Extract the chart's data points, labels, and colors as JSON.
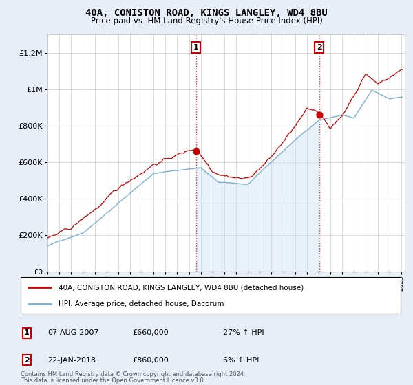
{
  "title": "40A, CONISTON ROAD, KINGS LANGLEY, WD4 8BU",
  "subtitle": "Price paid vs. HM Land Registry's House Price Index (HPI)",
  "legend_label_red": "40A, CONISTON ROAD, KINGS LANGLEY, WD4 8BU (detached house)",
  "legend_label_blue": "HPI: Average price, detached house, Dacorum",
  "ann1_label": "1",
  "ann1_date": "07-AUG-2007",
  "ann1_price": "£660,000",
  "ann1_change": "27% ↑ HPI",
  "ann1_x": 2007.6,
  "ann1_y": 660000,
  "ann2_label": "2",
  "ann2_date": "22-JAN-2018",
  "ann2_price": "£860,000",
  "ann2_change": "6% ↑ HPI",
  "ann2_x": 2018.05,
  "ann2_y": 860000,
  "footer1": "Contains HM Land Registry data © Crown copyright and database right 2024.",
  "footer2": "This data is licensed under the Open Government Licence v3.0.",
  "ylim_max": 1300000,
  "yticks": [
    0,
    200000,
    400000,
    600000,
    800000,
    1000000,
    1200000
  ],
  "ytick_labels": [
    "£0",
    "£200K",
    "£400K",
    "£600K",
    "£800K",
    "£1M",
    "£1.2M"
  ],
  "xmin": 1995,
  "xmax": 2025.3,
  "bg_color": "#e8eef8",
  "plot_bg": "#ffffff",
  "red_color": "#cc0000",
  "blue_color": "#7ab0d4",
  "fill_color": "#d0e0f0",
  "grid_color": "#cccccc",
  "title_fontsize": 10,
  "subtitle_fontsize": 8.5
}
